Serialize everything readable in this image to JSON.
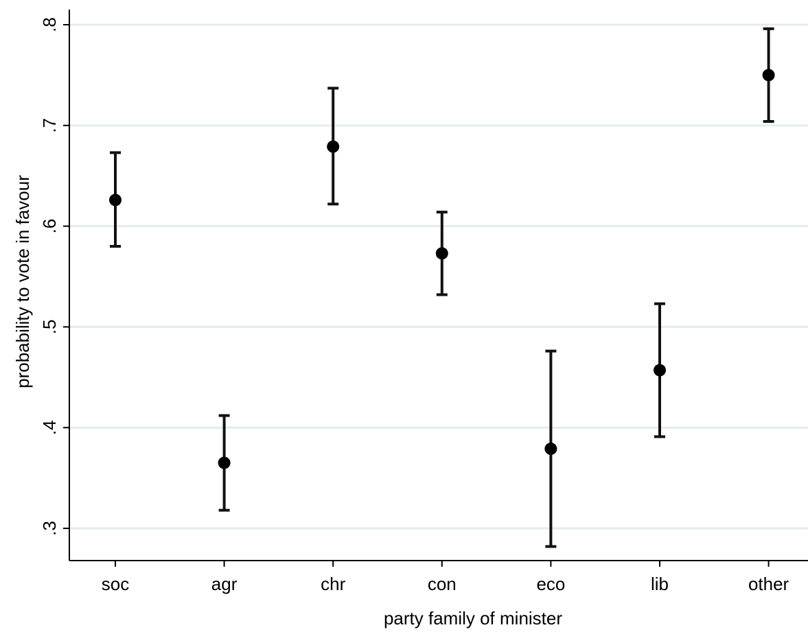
{
  "chart_data": {
    "type": "scatter",
    "title": "",
    "xlabel": "party family of minister",
    "ylabel": "probability to vote in favour",
    "categories": [
      "soc",
      "agr",
      "chr",
      "con",
      "eco",
      "lib",
      "other"
    ],
    "values": [
      0.626,
      0.365,
      0.679,
      0.573,
      0.379,
      0.457,
      0.75
    ],
    "ci_lower": [
      0.58,
      0.318,
      0.622,
      0.532,
      0.282,
      0.391,
      0.704
    ],
    "ci_upper": [
      0.673,
      0.412,
      0.737,
      0.614,
      0.476,
      0.523,
      0.796
    ],
    "yticks": [
      0.3,
      0.4,
      0.5,
      0.6,
      0.7,
      0.8
    ],
    "ytick_labels": [
      ".3",
      ".4",
      ".5",
      ".6",
      ".7",
      ".8"
    ],
    "ylim": [
      0.268,
      0.815
    ],
    "grid": true,
    "colors": {
      "marker": "#000000",
      "gridline": "#e3ecee",
      "background": "#ffffff"
    }
  }
}
